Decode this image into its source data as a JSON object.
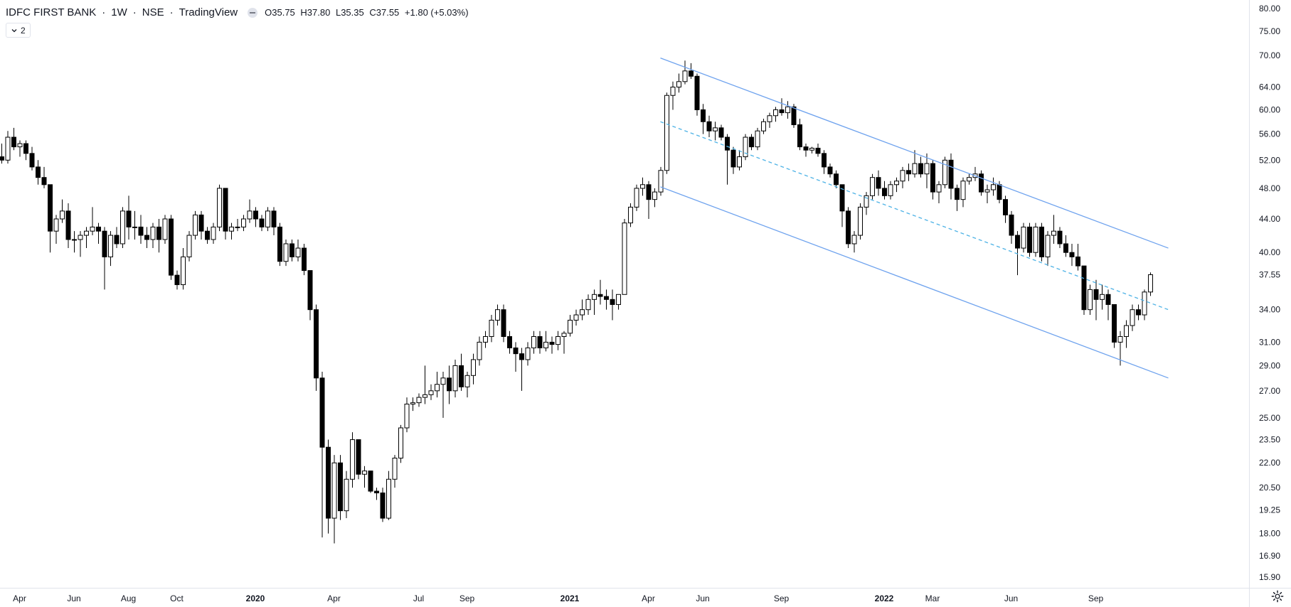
{
  "legend": {
    "symbol": "IDFC FIRST BANK",
    "interval": "1W",
    "exchange": "NSE",
    "source": "TradingView",
    "separator": "·",
    "ohlc": {
      "o": "O35.75",
      "h": "H37.80",
      "l": "L35.35",
      "c": "C37.55",
      "change": "+1.80 (+5.03%)"
    }
  },
  "indicator_badge": {
    "count": "2"
  },
  "icons": {
    "collapse": "chevron-down-icon",
    "settings": "gear-icon",
    "eye": "eye-off-icon"
  },
  "colors": {
    "up_body": "#ffffff",
    "down_body": "#000000",
    "wick": "#000000",
    "channel": "#6fa3ee",
    "midline": "#4fb3e6",
    "axis_text": "#131722",
    "grid": "#f0f3fa"
  },
  "chart_data": {
    "type": "candlestick",
    "title": "IDFC FIRST BANK · 1W · NSE",
    "scale": "log",
    "ylim": [
      15.5,
      82
    ],
    "price_ticks": [
      "80.00",
      "75.00",
      "70.00",
      "64.00",
      "60.00",
      "56.00",
      "52.00",
      "48.00",
      "44.00",
      "40.00",
      "37.55",
      "34.00",
      "31.00",
      "29.00",
      "27.00",
      "25.00",
      "23.50",
      "22.00",
      "20.50",
      "19.25",
      "18.00",
      "16.90",
      "15.90"
    ],
    "last_price": "37.55",
    "time_labels": [
      {
        "label": "Apr",
        "bold": false,
        "week": 3
      },
      {
        "label": "Jun",
        "bold": false,
        "week": 12
      },
      {
        "label": "Aug",
        "bold": false,
        "week": 21
      },
      {
        "label": "Oct",
        "bold": false,
        "week": 29
      },
      {
        "label": "2020",
        "bold": true,
        "week": 42
      },
      {
        "label": "Apr",
        "bold": false,
        "week": 55
      },
      {
        "label": "Jul",
        "bold": false,
        "week": 69
      },
      {
        "label": "Sep",
        "bold": false,
        "week": 77
      },
      {
        "label": "2021",
        "bold": true,
        "week": 94
      },
      {
        "label": "Apr",
        "bold": false,
        "week": 107
      },
      {
        "label": "Jun",
        "bold": false,
        "week": 116
      },
      {
        "label": "Sep",
        "bold": false,
        "week": 129
      },
      {
        "label": "2022",
        "bold": true,
        "week": 146
      },
      {
        "label": "Mar",
        "bold": false,
        "week": 154
      },
      {
        "label": "Jun",
        "bold": false,
        "week": 167
      },
      {
        "label": "Sep",
        "bold": false,
        "week": 181
      }
    ],
    "start_week": "2019-03-29",
    "candles": [
      [
        52.5,
        54.5,
        51.5,
        52.0
      ],
      [
        52.0,
        56.5,
        51.5,
        55.5
      ],
      [
        55.5,
        57.0,
        53.5,
        54.0
      ],
      [
        54.0,
        55.0,
        52.5,
        54.5
      ],
      [
        54.5,
        55.0,
        52.0,
        53.0
      ],
      [
        53.0,
        54.0,
        50.5,
        51.0
      ],
      [
        51.0,
        52.0,
        48.5,
        49.5
      ],
      [
        49.5,
        51.0,
        48.0,
        48.5
      ],
      [
        48.5,
        48.5,
        40.0,
        42.5
      ],
      [
        42.5,
        44.5,
        41.0,
        44.0
      ],
      [
        44.0,
        46.5,
        43.5,
        45.0
      ],
      [
        45.0,
        46.0,
        40.5,
        41.5
      ],
      [
        41.5,
        42.5,
        40.0,
        41.5
      ],
      [
        41.5,
        42.5,
        39.5,
        42.0
      ],
      [
        42.0,
        43.0,
        40.5,
        42.5
      ],
      [
        42.5,
        45.5,
        42.0,
        43.0
      ],
      [
        43.0,
        43.5,
        41.0,
        42.5
      ],
      [
        42.5,
        43.0,
        36.0,
        39.5
      ],
      [
        39.5,
        42.5,
        38.5,
        42.0
      ],
      [
        42.0,
        43.0,
        40.5,
        41.0
      ],
      [
        41.0,
        45.5,
        40.5,
        45.0
      ],
      [
        45.0,
        47.0,
        41.5,
        43.0
      ],
      [
        43.0,
        45.0,
        41.5,
        43.0
      ],
      [
        43.0,
        44.5,
        41.0,
        42.0
      ],
      [
        42.0,
        43.0,
        40.5,
        41.5
      ],
      [
        41.5,
        43.5,
        40.5,
        43.0
      ],
      [
        43.0,
        44.0,
        40.0,
        41.5
      ],
      [
        41.5,
        44.5,
        41.0,
        44.0
      ],
      [
        44.0,
        44.5,
        37.0,
        37.5
      ],
      [
        37.5,
        38.0,
        36.0,
        36.5
      ],
      [
        36.5,
        40.5,
        36.0,
        39.5
      ],
      [
        39.5,
        42.5,
        39.0,
        42.0
      ],
      [
        42.0,
        45.0,
        41.5,
        44.5
      ],
      [
        44.5,
        45.0,
        41.5,
        42.5
      ],
      [
        42.5,
        43.0,
        41.0,
        41.5
      ],
      [
        41.5,
        43.5,
        41.0,
        43.0
      ],
      [
        43.0,
        48.5,
        42.5,
        48.0
      ],
      [
        48.0,
        48.0,
        41.5,
        42.5
      ],
      [
        42.5,
        43.5,
        41.5,
        43.0
      ],
      [
        43.0,
        44.0,
        42.5,
        43.0
      ],
      [
        43.0,
        44.5,
        42.5,
        44.0
      ],
      [
        44.0,
        46.5,
        43.5,
        45.0
      ],
      [
        45.0,
        45.5,
        43.0,
        44.0
      ],
      [
        44.0,
        44.5,
        42.5,
        43.0
      ],
      [
        43.0,
        45.5,
        42.5,
        45.0
      ],
      [
        45.0,
        45.5,
        42.0,
        43.0
      ],
      [
        43.0,
        43.5,
        38.5,
        39.0
      ],
      [
        39.0,
        41.5,
        38.5,
        41.0
      ],
      [
        41.0,
        41.5,
        39.0,
        39.5
      ],
      [
        39.5,
        41.5,
        39.0,
        40.5
      ],
      [
        40.5,
        41.0,
        37.5,
        38.0
      ],
      [
        38.0,
        38.0,
        33.0,
        34.0
      ],
      [
        34.0,
        34.5,
        27.0,
        28.0
      ],
      [
        28.0,
        28.5,
        17.8,
        23.0
      ],
      [
        23.0,
        23.5,
        18.0,
        18.8
      ],
      [
        18.8,
        22.5,
        17.5,
        22.0
      ],
      [
        22.0,
        22.5,
        18.7,
        19.2
      ],
      [
        19.2,
        21.5,
        18.8,
        21.0
      ],
      [
        21.0,
        24.0,
        20.5,
        23.5
      ],
      [
        23.5,
        23.5,
        21.0,
        21.3
      ],
      [
        21.3,
        21.8,
        20.5,
        21.5
      ],
      [
        21.5,
        21.5,
        20.2,
        20.3
      ],
      [
        20.3,
        20.5,
        19.8,
        20.2
      ],
      [
        20.2,
        20.5,
        18.6,
        18.8
      ],
      [
        18.8,
        21.5,
        18.7,
        21.0
      ],
      [
        21.0,
        22.5,
        20.5,
        22.3
      ],
      [
        22.3,
        24.5,
        22.0,
        24.3
      ],
      [
        24.3,
        26.5,
        24.0,
        26.0
      ],
      [
        26.0,
        26.5,
        25.5,
        26.1
      ],
      [
        26.1,
        26.8,
        25.8,
        26.5
      ],
      [
        26.5,
        29.0,
        26.0,
        26.7
      ],
      [
        26.7,
        27.5,
        26.3,
        27.0
      ],
      [
        27.0,
        28.5,
        26.5,
        27.5
      ],
      [
        27.5,
        28.5,
        25.0,
        28.0
      ],
      [
        28.0,
        29.0,
        26.0,
        27.0
      ],
      [
        27.0,
        29.5,
        26.5,
        29.0
      ],
      [
        29.0,
        30.0,
        27.0,
        27.3
      ],
      [
        27.3,
        28.5,
        26.5,
        28.2
      ],
      [
        28.2,
        30.0,
        27.5,
        29.5
      ],
      [
        29.5,
        31.5,
        29.0,
        31.0
      ],
      [
        31.0,
        32.0,
        30.5,
        31.5
      ],
      [
        31.5,
        33.5,
        31.0,
        33.0
      ],
      [
        33.0,
        34.5,
        32.5,
        34.0
      ],
      [
        34.0,
        34.5,
        31.0,
        31.5
      ],
      [
        31.5,
        32.0,
        30.0,
        30.5
      ],
      [
        30.5,
        31.0,
        28.5,
        30.0
      ],
      [
        30.0,
        30.5,
        27.0,
        29.5
      ],
      [
        29.5,
        31.0,
        29.0,
        30.5
      ],
      [
        30.5,
        32.0,
        30.0,
        31.5
      ],
      [
        31.5,
        32.0,
        30.0,
        30.5
      ],
      [
        30.5,
        32.0,
        30.2,
        31.0
      ],
      [
        31.0,
        31.5,
        30.0,
        30.8
      ],
      [
        30.8,
        32.0,
        30.3,
        31.5
      ],
      [
        31.5,
        32.0,
        30.0,
        31.8
      ],
      [
        31.8,
        33.5,
        31.5,
        33.0
      ],
      [
        33.0,
        34.0,
        32.5,
        33.5
      ],
      [
        33.5,
        35.0,
        33.0,
        34.0
      ],
      [
        34.0,
        35.5,
        33.5,
        35.0
      ],
      [
        35.0,
        36.0,
        33.5,
        35.5
      ],
      [
        35.5,
        37.0,
        34.5,
        35.3
      ],
      [
        35.3,
        36.0,
        34.0,
        35.0
      ],
      [
        35.0,
        36.0,
        33.0,
        34.5
      ],
      [
        34.5,
        35.5,
        34.0,
        35.5
      ],
      [
        35.5,
        44.0,
        35.5,
        43.5
      ],
      [
        43.5,
        46.0,
        43.0,
        45.5
      ],
      [
        45.5,
        48.5,
        45.0,
        48.0
      ],
      [
        48.0,
        49.5,
        47.0,
        48.5
      ],
      [
        48.5,
        49.0,
        44.0,
        46.5
      ],
      [
        46.5,
        48.0,
        45.5,
        47.5
      ],
      [
        47.5,
        51.0,
        47.0,
        50.5
      ],
      [
        50.5,
        63.0,
        50.0,
        62.5
      ],
      [
        62.5,
        65.0,
        60.0,
        64.0
      ],
      [
        64.0,
        66.5,
        63.0,
        65.0
      ],
      [
        65.0,
        69.0,
        64.5,
        67.0
      ],
      [
        67.0,
        68.5,
        65.5,
        66.0
      ],
      [
        66.0,
        66.5,
        59.0,
        60.0
      ],
      [
        60.0,
        61.0,
        56.0,
        58.0
      ],
      [
        58.0,
        59.0,
        55.5,
        56.5
      ],
      [
        56.5,
        58.0,
        55.0,
        57.0
      ],
      [
        57.0,
        57.5,
        55.0,
        55.5
      ],
      [
        55.5,
        56.0,
        48.5,
        53.5
      ],
      [
        53.5,
        54.0,
        50.0,
        51.0
      ],
      [
        51.0,
        53.5,
        50.5,
        52.5
      ],
      [
        52.5,
        56.0,
        52.0,
        55.5
      ],
      [
        55.5,
        56.0,
        53.5,
        54.0
      ],
      [
        54.0,
        57.0,
        53.5,
        56.5
      ],
      [
        56.5,
        58.5,
        56.0,
        58.0
      ],
      [
        58.0,
        59.5,
        57.0,
        59.0
      ],
      [
        59.0,
        60.5,
        58.0,
        60.0
      ],
      [
        60.0,
        62.0,
        59.0,
        59.5
      ],
      [
        59.5,
        61.5,
        58.5,
        60.5
      ],
      [
        60.5,
        61.0,
        57.0,
        57.5
      ],
      [
        57.5,
        58.5,
        53.5,
        54.0
      ],
      [
        54.0,
        54.5,
        52.5,
        53.5
      ],
      [
        53.5,
        54.0,
        53.0,
        53.8
      ],
      [
        53.8,
        54.5,
        52.5,
        53.0
      ],
      [
        53.0,
        53.5,
        50.0,
        51.0
      ],
      [
        51.0,
        51.5,
        49.5,
        50.0
      ],
      [
        50.0,
        50.5,
        48.0,
        48.5
      ],
      [
        48.5,
        48.5,
        43.0,
        45.0
      ],
      [
        45.0,
        45.5,
        40.5,
        41.0
      ],
      [
        41.0,
        42.5,
        40.0,
        42.0
      ],
      [
        42.0,
        46.0,
        41.5,
        45.5
      ],
      [
        45.5,
        47.5,
        44.5,
        47.0
      ],
      [
        47.0,
        50.0,
        46.5,
        49.5
      ],
      [
        49.5,
        50.5,
        47.0,
        48.0
      ],
      [
        48.0,
        49.0,
        46.5,
        47.0
      ],
      [
        47.0,
        49.0,
        46.5,
        48.5
      ],
      [
        48.5,
        49.5,
        47.5,
        49.0
      ],
      [
        49.0,
        51.0,
        48.0,
        50.5
      ],
      [
        50.5,
        51.5,
        49.0,
        50.0
      ],
      [
        50.0,
        53.5,
        49.5,
        51.5
      ],
      [
        51.5,
        52.5,
        49.5,
        50.0
      ],
      [
        50.0,
        53.0,
        48.0,
        51.5
      ],
      [
        51.5,
        52.0,
        46.5,
        47.5
      ],
      [
        47.5,
        49.0,
        46.0,
        48.5
      ],
      [
        48.5,
        52.5,
        48.0,
        52.0
      ],
      [
        52.0,
        53.0,
        46.5,
        48.0
      ],
      [
        48.0,
        48.5,
        45.0,
        46.5
      ],
      [
        46.5,
        49.5,
        45.5,
        49.0
      ],
      [
        49.0,
        50.0,
        48.5,
        49.5
      ],
      [
        49.5,
        51.0,
        49.0,
        50.0
      ],
      [
        50.0,
        50.5,
        47.0,
        47.5
      ],
      [
        47.5,
        48.5,
        46.0,
        47.8
      ],
      [
        47.8,
        49.5,
        47.0,
        48.5
      ],
      [
        48.5,
        49.0,
        46.0,
        46.5
      ],
      [
        46.5,
        47.0,
        43.5,
        44.5
      ],
      [
        44.5,
        45.0,
        41.0,
        42.0
      ],
      [
        42.0,
        42.5,
        37.5,
        40.5
      ],
      [
        40.5,
        43.5,
        40.0,
        43.0
      ],
      [
        43.0,
        43.5,
        39.5,
        40.0
      ],
      [
        40.0,
        43.5,
        39.5,
        43.0
      ],
      [
        43.0,
        43.5,
        39.0,
        39.5
      ],
      [
        39.5,
        42.5,
        38.5,
        42.0
      ],
      [
        42.0,
        44.5,
        41.0,
        42.5
      ],
      [
        42.5,
        43.0,
        40.5,
        41.0
      ],
      [
        41.0,
        42.0,
        39.5,
        40.0
      ],
      [
        40.0,
        41.0,
        38.5,
        39.5
      ],
      [
        39.5,
        41.0,
        38.0,
        38.5
      ],
      [
        38.5,
        38.5,
        33.5,
        34.0
      ],
      [
        34.0,
        36.5,
        33.5,
        36.0
      ],
      [
        36.0,
        37.0,
        33.0,
        35.0
      ],
      [
        35.0,
        36.5,
        34.0,
        35.5
      ],
      [
        35.5,
        36.0,
        33.0,
        34.5
      ],
      [
        34.5,
        34.5,
        30.5,
        31.0
      ],
      [
        31.0,
        32.0,
        29.0,
        31.5
      ],
      [
        31.5,
        33.0,
        30.5,
        32.5
      ],
      [
        32.5,
        34.5,
        32.0,
        34.0
      ],
      [
        34.0,
        34.5,
        33.0,
        33.5
      ],
      [
        33.5,
        36.0,
        33.0,
        35.75
      ],
      [
        35.75,
        37.8,
        35.35,
        37.55
      ]
    ],
    "trendlines": [
      {
        "name": "channel-upper",
        "style": "solid",
        "from": {
          "week": 109,
          "price": 69.5
        },
        "to": {
          "week": 193,
          "price": 40.5
        }
      },
      {
        "name": "channel-mid",
        "style": "dashed",
        "from": {
          "week": 109,
          "price": 58.0
        },
        "to": {
          "week": 193,
          "price": 34.0
        }
      },
      {
        "name": "channel-lower",
        "style": "solid",
        "from": {
          "week": 109,
          "price": 48.2
        },
        "to": {
          "week": 193,
          "price": 28.0
        }
      }
    ]
  }
}
